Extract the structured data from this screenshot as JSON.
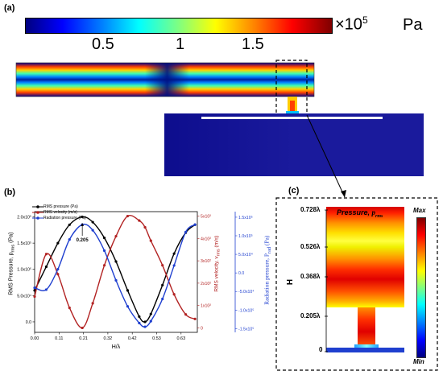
{
  "panel_a": {
    "label": "(a)",
    "colorbar": {
      "ticks": [
        "0.5",
        "1",
        "1.5"
      ],
      "exponent_label": "×10",
      "exponent": "5",
      "unit": "Pa"
    }
  },
  "panel_b": {
    "label": "(b)",
    "left_axis_label": "RMS Pressure, p",
    "left_axis_sub": "rms",
    "left_axis_unit": " (Pa)",
    "right_axis1_label": "RMS velocity, v",
    "right_axis1_sub": "rms",
    "right_axis1_unit": " (m/s)",
    "right_axis2_label": "Radiation pressure, P",
    "right_axis2_sub": "rad",
    "right_axis2_unit": " (Pa)",
    "x_label": "H/λ",
    "annotation": "0.205",
    "legend": [
      {
        "label": "RMS pressure (Pa)",
        "color": "#000000"
      },
      {
        "label": "RMS velocity (m/s)",
        "color": "#b22222"
      },
      {
        "label": "Radiation pressure (Pa)",
        "color": "#1f3fcf"
      }
    ],
    "x_ticks": [
      "0.00",
      "0.11",
      "0.21",
      "0.32",
      "0.42",
      "0.53",
      "0.63"
    ],
    "left_ticks": [
      "0.0",
      "5.0x10⁴",
      "1.0x10⁵",
      "1.5x10⁵",
      "2.0x10⁵"
    ],
    "right1_ticks": [
      "0",
      "1x10²",
      "2x10²",
      "3x10²",
      "4x10²",
      "5x10²"
    ],
    "right2_ticks": [
      "-1.5x10⁵",
      "-1.0x10⁵",
      "-5.0x10⁴",
      "0.0",
      "5.0x10⁴",
      "1.0x10⁵",
      "1.5x10⁵"
    ]
  },
  "panel_c": {
    "label": "(c)",
    "title": "Pressure, ",
    "title_sym": "p",
    "title_sub": "rms",
    "y_label": "H",
    "y_ticks": [
      "0.728λ",
      "0.526λ",
      "0.368λ",
      "0.205λ",
      "0"
    ],
    "cb_max": "Max",
    "cb_min": "Min"
  },
  "chart_data": {
    "type": "line",
    "x": [
      0.0,
      0.05,
      0.1,
      0.15,
      0.205,
      0.25,
      0.3,
      0.35,
      0.4,
      0.45,
      0.475,
      0.5,
      0.55,
      0.6,
      0.65,
      0.69
    ],
    "x_label": "H/λ",
    "xlim": [
      0.0,
      0.7
    ],
    "series": [
      {
        "name": "RMS pressure (Pa)",
        "axis": "left",
        "color": "#000000",
        "values": [
          60000,
          105000,
          150000,
          185000,
          200000,
          190000,
          160000,
          115000,
          60000,
          10000,
          0,
          15000,
          70000,
          130000,
          170000,
          185000
        ]
      },
      {
        "name": "RMS velocity (m/s)",
        "axis": "right1",
        "color": "#b22222",
        "values": [
          140,
          330,
          240,
          90,
          0,
          110,
          280,
          410,
          500,
          480,
          450,
          390,
          280,
          150,
          60,
          40
        ]
      },
      {
        "name": "Radiation pressure (Pa)",
        "axis": "right2",
        "color": "#1f3fcf",
        "values": [
          -40000,
          -45000,
          10000,
          90000,
          130000,
          115000,
          60000,
          -20000,
          -90000,
          -135000,
          -145000,
          -130000,
          -70000,
          20000,
          110000,
          130000
        ]
      }
    ],
    "ylim_left": [
      -20000,
      210000
    ],
    "ylim_right1": [
      -20,
      520
    ],
    "ylim_right2": [
      -160000,
      165000
    ],
    "annotation": {
      "text": "0.205",
      "x": 0.205
    }
  }
}
